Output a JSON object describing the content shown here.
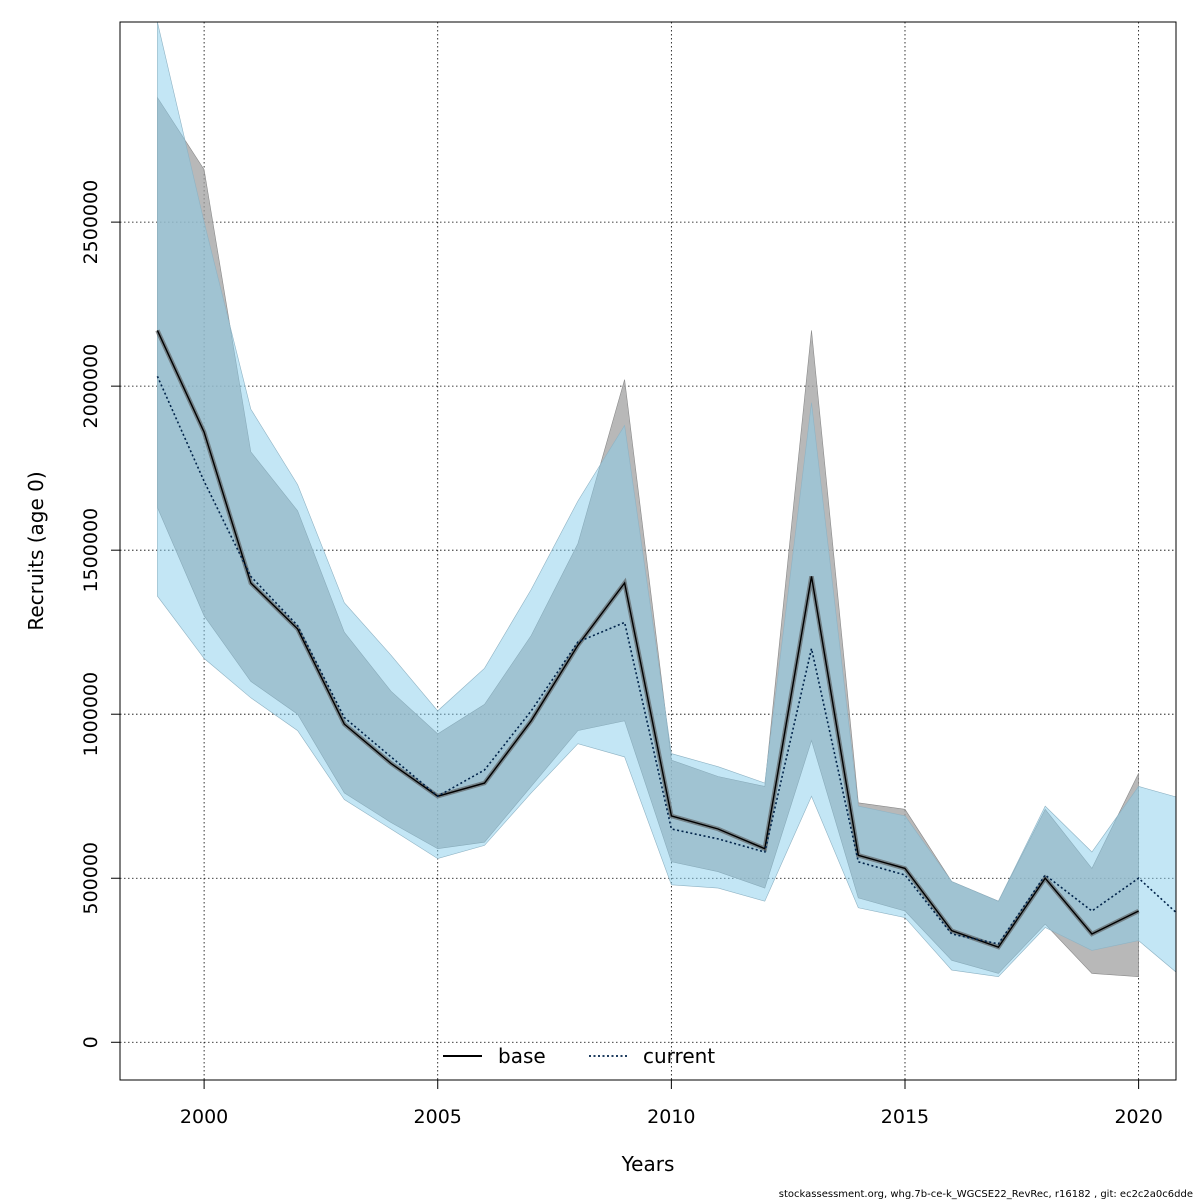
{
  "chart_data": {
    "type": "line",
    "xlabel": "Years",
    "ylabel": "Recruits (age 0)",
    "xlim": [
      1998.2,
      2020.8
    ],
    "ylim": [
      -115000,
      3110000
    ],
    "x_ticks": [
      2000,
      2005,
      2010,
      2015,
      2020
    ],
    "x_tick_labels": [
      "2000",
      "2005",
      "2010",
      "2015",
      "2020"
    ],
    "y_ticks": [
      0,
      500000,
      1000000,
      1500000,
      2000000,
      2500000
    ],
    "y_tick_labels": [
      "0",
      "500000",
      "1000000",
      "1500000",
      "2000000",
      "2500000"
    ],
    "grid": true,
    "legend_position": "bottom",
    "series": [
      {
        "name": "base",
        "line_style": "solid",
        "line_color": "#000000",
        "band_color": "#a0a0a0",
        "x": [
          1999,
          2000,
          2001,
          2002,
          2003,
          2004,
          2005,
          2006,
          2007,
          2008,
          2009,
          2010,
          2011,
          2012,
          2013,
          2014,
          2015,
          2016,
          2017,
          2018,
          2019,
          2020
        ],
        "values": [
          2170000,
          1860000,
          1400000,
          1260000,
          970000,
          850000,
          750000,
          790000,
          980000,
          1210000,
          1400000,
          690000,
          650000,
          590000,
          1420000,
          570000,
          530000,
          340000,
          290000,
          500000,
          330000,
          400000
        ],
        "lower": [
          1630000,
          1300000,
          1100000,
          1000000,
          760000,
          670000,
          590000,
          610000,
          780000,
          950000,
          980000,
          550000,
          520000,
          470000,
          920000,
          440000,
          400000,
          250000,
          210000,
          360000,
          210000,
          200000
        ],
        "upper": [
          2880000,
          2660000,
          1800000,
          1620000,
          1250000,
          1070000,
          940000,
          1030000,
          1240000,
          1520000,
          2020000,
          860000,
          810000,
          780000,
          2170000,
          730000,
          710000,
          490000,
          430000,
          710000,
          530000,
          820000
        ]
      },
      {
        "name": "current",
        "line_style": "dotted",
        "line_color": "#00234a",
        "band_color": "#87ceeb",
        "x": [
          1999,
          2000,
          2001,
          2002,
          2003,
          2004,
          2005,
          2006,
          2007,
          2008,
          2009,
          2010,
          2011,
          2012,
          2013,
          2014,
          2015,
          2016,
          2017,
          2018,
          2019,
          2020,
          2021
        ],
        "values": [
          2030000,
          1710000,
          1420000,
          1270000,
          990000,
          870000,
          750000,
          830000,
          1010000,
          1220000,
          1280000,
          650000,
          620000,
          580000,
          1200000,
          550000,
          510000,
          330000,
          300000,
          510000,
          400000,
          500000,
          370000
        ],
        "lower": [
          1360000,
          1170000,
          1050000,
          950000,
          740000,
          650000,
          560000,
          600000,
          760000,
          910000,
          870000,
          480000,
          470000,
          430000,
          750000,
          410000,
          380000,
          220000,
          200000,
          350000,
          280000,
          310000,
          190000
        ],
        "upper": [
          3110000,
          2500000,
          1930000,
          1700000,
          1340000,
          1180000,
          1010000,
          1140000,
          1380000,
          1650000,
          1880000,
          880000,
          840000,
          790000,
          1950000,
          720000,
          690000,
          490000,
          430000,
          720000,
          580000,
          780000,
          740000
        ]
      }
    ]
  },
  "footer": "stockassessment.org, whg.7b-ce-k_WGCSE22_RevRec, r16182 , git: ec2c2a0c6dde"
}
